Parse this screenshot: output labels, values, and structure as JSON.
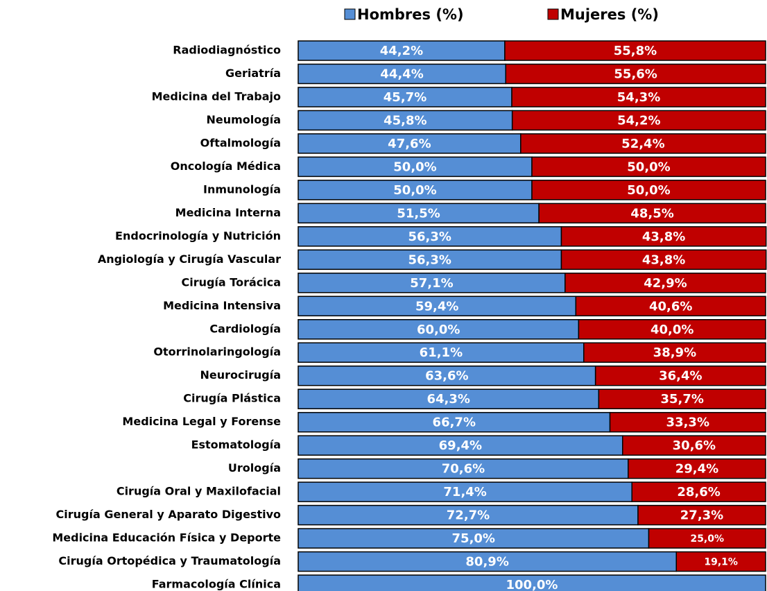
{
  "chart_data": {
    "type": "bar",
    "orientation": "horizontal",
    "stacked": true,
    "categories": [
      "Radiodiagnóstico",
      "Geriatría",
      "Medicina del Trabajo",
      "Neumología",
      "Oftalmología",
      "Oncología Médica",
      "Inmunología",
      "Medicina Interna",
      "Endocrinología y Nutrición",
      "Angiología y Cirugía Vascular",
      "Cirugía Torácica",
      "Medicina Intensiva",
      "Cardiología",
      "Otorrinolaringología",
      "Neurocirugía",
      "Cirugía Plástica",
      "Medicina Legal y Forense",
      "Estomatología",
      "Urología",
      "Cirugía Oral y Maxilofacial",
      "Cirugía General y Aparato Digestivo",
      "Medicina Educación Física y Deporte",
      "Cirugía Ortopédica y Traumatología",
      "Farmacología Clínica"
    ],
    "series": [
      {
        "name": "Hombres (%)",
        "color": "#558ed5",
        "values": [
          44.2,
          44.4,
          45.7,
          45.8,
          47.6,
          50.0,
          50.0,
          51.5,
          56.3,
          56.3,
          57.1,
          59.4,
          60.0,
          61.1,
          63.6,
          64.3,
          66.7,
          69.4,
          70.6,
          71.4,
          72.7,
          75.0,
          80.9,
          100.0
        ],
        "value_labels": [
          "44,2%",
          "44,4%",
          "45,7%",
          "45,8%",
          "47,6%",
          "50,0%",
          "50,0%",
          "51,5%",
          "56,3%",
          "56,3%",
          "57,1%",
          "59,4%",
          "60,0%",
          "61,1%",
          "63,6%",
          "64,3%",
          "66,7%",
          "69,4%",
          "70,6%",
          "71,4%",
          "72,7%",
          "75,0%",
          "80,9%",
          "100,0%"
        ]
      },
      {
        "name": "Mujeres (%)",
        "color": "#c00000",
        "values": [
          55.8,
          55.6,
          54.3,
          54.2,
          52.4,
          50.0,
          50.0,
          48.5,
          43.8,
          43.8,
          42.9,
          40.6,
          40.0,
          38.9,
          36.4,
          35.7,
          33.3,
          30.6,
          29.4,
          28.6,
          27.3,
          25.0,
          19.1,
          0
        ],
        "value_labels": [
          "55,8%",
          "55,6%",
          "54,3%",
          "54,2%",
          "52,4%",
          "50,0%",
          "50,0%",
          "48,5%",
          "43,8%",
          "43,8%",
          "42,9%",
          "40,6%",
          "40,0%",
          "38,9%",
          "36,4%",
          "35,7%",
          "33,3%",
          "30,6%",
          "29,4%",
          "28,6%",
          "27,3%",
          "25,0%",
          "19,1%",
          null
        ]
      }
    ],
    "xlim": [
      0,
      100
    ],
    "legend": "top"
  }
}
